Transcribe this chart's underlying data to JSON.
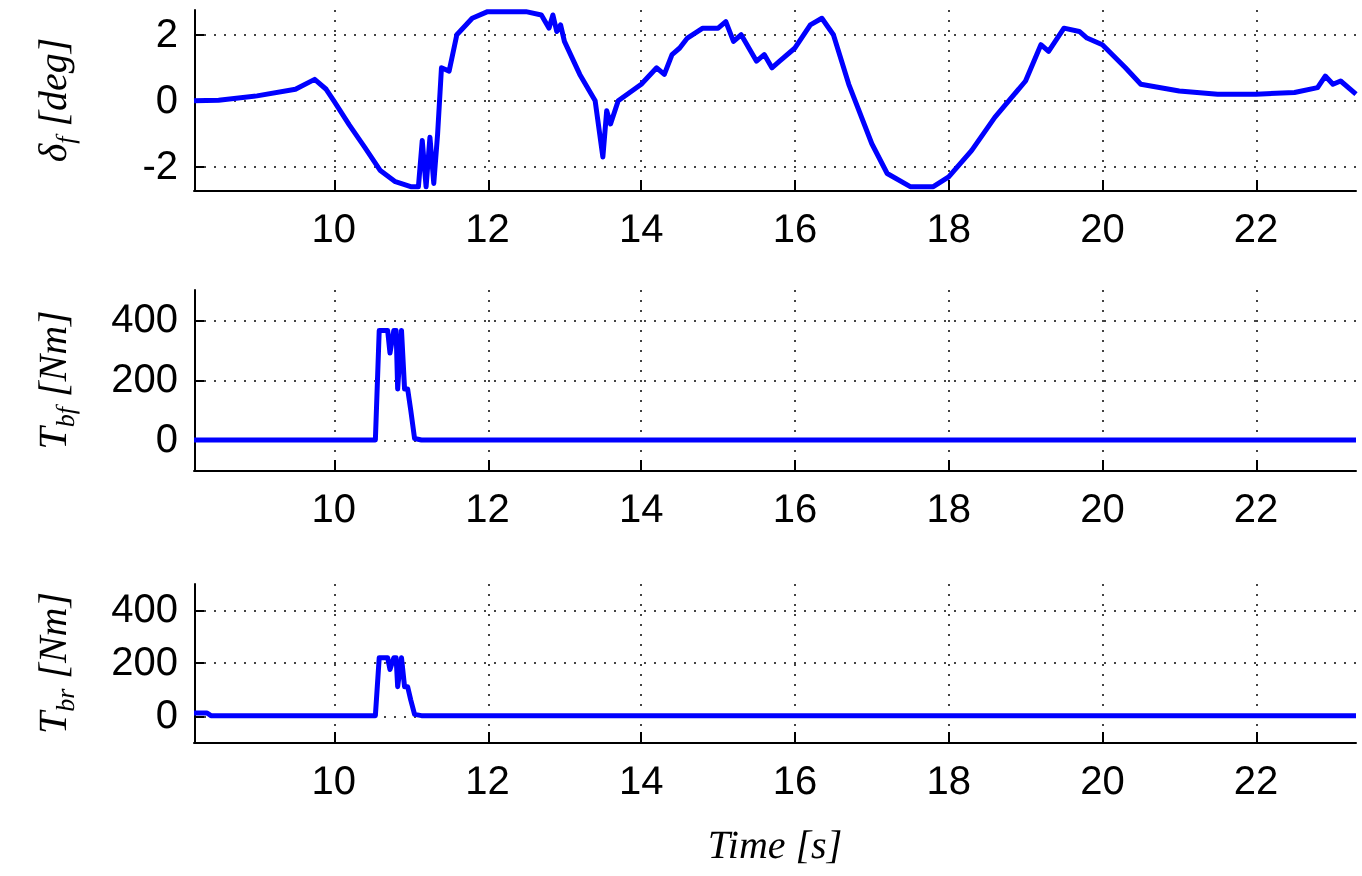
{
  "chart_data": [
    {
      "type": "line",
      "ylabel": "δ$_{f}$ [deg]",
      "color": "#0000ff",
      "xlim": [
        8.18,
        23.3
      ],
      "xticks": [
        10,
        12,
        14,
        16,
        18,
        20,
        22
      ],
      "ylim": [
        -2.7,
        2.75
      ],
      "yticks": [
        -2,
        0,
        2
      ],
      "grid": true,
      "x": [
        8.18,
        8.5,
        9,
        9.5,
        9.75,
        9.9,
        10,
        10.2,
        10.4,
        10.6,
        10.8,
        11,
        11.1,
        11.15,
        11.2,
        11.25,
        11.3,
        11.35,
        11.4,
        11.5,
        11.6,
        11.8,
        12,
        12.5,
        12.7,
        12.8,
        12.85,
        12.9,
        12.95,
        13,
        13.2,
        13.4,
        13.5,
        13.55,
        13.6,
        13.7,
        14,
        14.2,
        14.3,
        14.4,
        14.5,
        14.6,
        14.8,
        15,
        15.1,
        15.2,
        15.3,
        15.5,
        15.6,
        15.7,
        15.8,
        16,
        16.2,
        16.35,
        16.5,
        16.7,
        17,
        17.2,
        17.5,
        17.8,
        18,
        18.3,
        18.6,
        19,
        19.2,
        19.3,
        19.5,
        19.7,
        19.8,
        20,
        20.3,
        20.5,
        21,
        21.5,
        22,
        22.5,
        22.8,
        22.9,
        23,
        23.1,
        23.3
      ],
      "values": [
        0,
        0.02,
        0.15,
        0.35,
        0.65,
        0.35,
        0,
        -0.73,
        -1.4,
        -2.1,
        -2.45,
        -2.6,
        -2.6,
        -1.2,
        -2.6,
        -1.1,
        -2.5,
        -1,
        1,
        0.9,
        2,
        2.5,
        2.7,
        2.7,
        2.6,
        2.2,
        2.6,
        2.1,
        2.3,
        1.8,
        0.8,
        0,
        -1.7,
        -0.3,
        -0.7,
        0,
        0.5,
        1,
        0.8,
        1.4,
        1.6,
        1.9,
        2.2,
        2.2,
        2.4,
        1.8,
        2,
        1.2,
        1.4,
        1,
        1.2,
        1.6,
        2.3,
        2.5,
        2,
        0.5,
        -1.3,
        -2.2,
        -2.6,
        -2.6,
        -2.3,
        -1.5,
        -0.5,
        0.6,
        1.7,
        1.5,
        2.2,
        2.1,
        1.9,
        1.7,
        1,
        0.5,
        0.3,
        0.2,
        0.2,
        0.25,
        0.4,
        0.75,
        0.5,
        0.6,
        0.2
      ]
    },
    {
      "type": "line",
      "ylabel": "T$_{bf}$ [Nm]",
      "color": "#0000ff",
      "xlim": [
        8.18,
        23.3
      ],
      "xticks": [
        10,
        12,
        14,
        16,
        18,
        20,
        22
      ],
      "ylim": [
        -100,
        500
      ],
      "yticks": [
        0,
        200,
        400
      ],
      "grid": true,
      "x": [
        8.18,
        10.54,
        10.59,
        10.7,
        10.73,
        10.78,
        10.81,
        10.83,
        10.88,
        10.92,
        10.96,
        11,
        11.05,
        11.14,
        23.3
      ],
      "values": [
        0,
        0,
        365,
        365,
        290,
        365,
        365,
        170,
        365,
        170,
        170,
        100,
        5,
        0,
        0
      ]
    },
    {
      "type": "line",
      "ylabel": "T$_{br}$ [Nm]",
      "xlabel": "Time [s]",
      "color": "#0000ff",
      "xlim": [
        8.18,
        23.3
      ],
      "xticks": [
        10,
        12,
        14,
        16,
        18,
        20,
        22
      ],
      "ylim": [
        -100,
        500
      ],
      "yticks": [
        0,
        200,
        400
      ],
      "grid": true,
      "x": [
        8.18,
        8.35,
        8.4,
        10.54,
        10.59,
        10.7,
        10.73,
        10.78,
        10.81,
        10.83,
        10.88,
        10.92,
        10.96,
        11,
        11.05,
        11.14,
        23.3
      ],
      "values": [
        10,
        10,
        0,
        0,
        220,
        220,
        175,
        220,
        220,
        110,
        220,
        110,
        110,
        60,
        5,
        0,
        0
      ]
    }
  ]
}
